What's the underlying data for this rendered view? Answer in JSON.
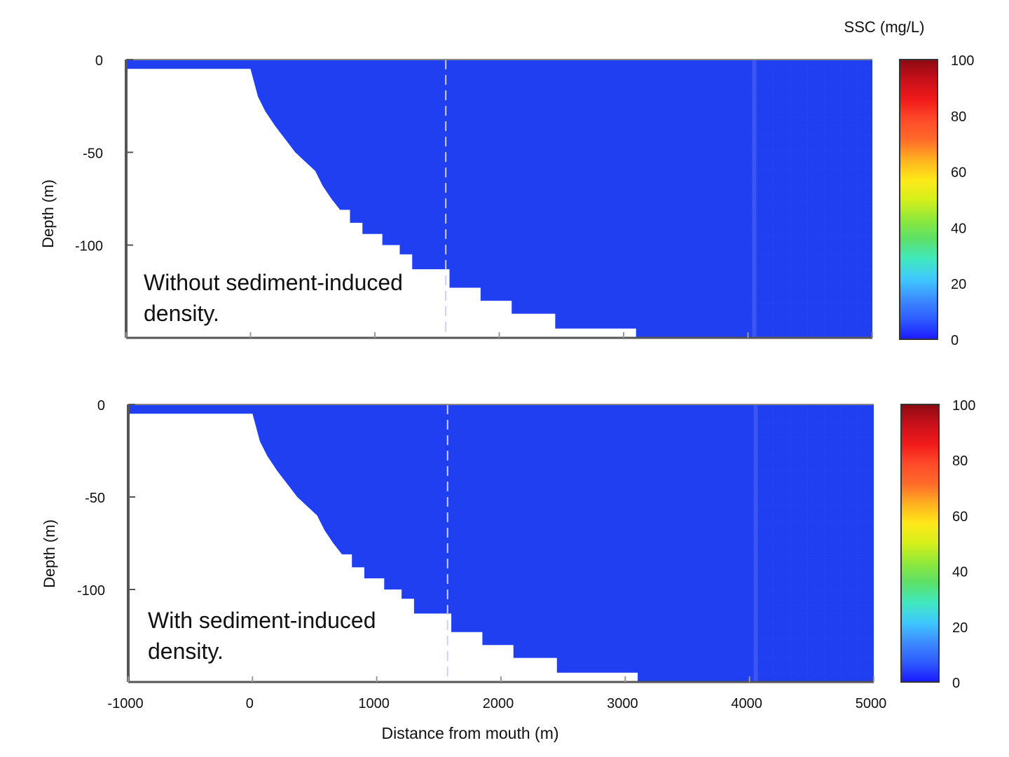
{
  "colors": {
    "water": "#1f3ff0",
    "water_far": "#2142e6",
    "seabed": "#ffffff",
    "axis": "#555555",
    "dashed_line": "#c8d0ff",
    "colormap": [
      "#1a1aff",
      "#2f5cff",
      "#3d8bff",
      "#3fc8ff",
      "#40e8c0",
      "#5ce06a",
      "#8fe83a",
      "#d6f01a",
      "#ffe81a",
      "#ffb020",
      "#ff6a2a",
      "#ff4a2a",
      "#f01a1a",
      "#c8101a",
      "#8c0a12"
    ]
  },
  "chart_data": [
    {
      "type": "heatmap",
      "annotation": "Without sediment-induced density.",
      "ylabel": "Depth (m)",
      "y_ticks": [
        0,
        -50,
        -100
      ],
      "ylim": [
        -150,
        0
      ],
      "xlim": [
        -1000,
        5000
      ],
      "x_ticks": [
        -1000,
        0,
        1000,
        2000,
        3000,
        4000,
        5000
      ],
      "dashed_x": 1570,
      "uniform_ssc_mg_L": 3,
      "bathymetry": {
        "x": [
          -1000,
          0,
          20,
          60,
          120,
          200,
          280,
          360,
          440,
          520,
          580,
          650,
          720,
          800,
          900,
          1060,
          1200,
          1300,
          1570,
          1600,
          1850,
          2100,
          2450,
          3100,
          3100,
          5000
        ],
        "depth": [
          -5,
          -5,
          -10,
          -20,
          -28,
          -36,
          -43,
          -50,
          -55,
          -60,
          -68,
          -75,
          -81,
          -88,
          -94,
          -100,
          -105,
          -113,
          -113,
          -123,
          -130,
          -137,
          -145,
          -145,
          -150,
          -150
        ]
      },
      "colorbar": {
        "label": "SSC (mg/L)",
        "ticks": [
          0,
          20,
          40,
          60,
          80,
          100
        ],
        "range": [
          0,
          100
        ]
      }
    },
    {
      "type": "heatmap",
      "annotation": "With sediment-induced density.",
      "ylabel": "Depth (m)",
      "y_ticks": [
        0,
        -50,
        -100
      ],
      "ylim": [
        -150,
        0
      ],
      "xlim": [
        -1000,
        5000
      ],
      "x_ticks": [
        -1000,
        0,
        1000,
        2000,
        3000,
        4000,
        5000
      ],
      "xlabel": "Distance from mouth (m)",
      "dashed_x": 1570,
      "uniform_ssc_mg_L": 3,
      "bathymetry": {
        "x": [
          -1000,
          0,
          20,
          60,
          120,
          200,
          280,
          360,
          440,
          520,
          580,
          650,
          720,
          800,
          900,
          1060,
          1200,
          1300,
          1570,
          1600,
          1850,
          2100,
          2450,
          3100,
          3100,
          5000
        ],
        "depth": [
          -5,
          -5,
          -10,
          -20,
          -28,
          -36,
          -43,
          -50,
          -55,
          -60,
          -68,
          -75,
          -81,
          -88,
          -94,
          -100,
          -105,
          -113,
          -113,
          -123,
          -130,
          -137,
          -145,
          -145,
          -150,
          -150
        ]
      },
      "colorbar": {
        "label": "",
        "ticks": [
          0,
          20,
          40,
          60,
          80,
          100
        ],
        "range": [
          0,
          100
        ]
      }
    }
  ]
}
